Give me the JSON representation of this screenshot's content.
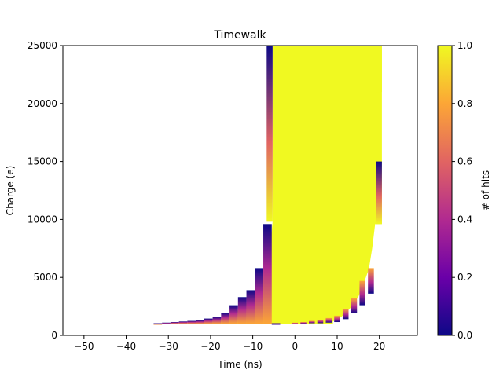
{
  "chart_data": {
    "type": "heatmap",
    "title": "Timewalk",
    "title_color": "#1f5f99",
    "xlabel": "Time (ns)",
    "ylabel": "Charge (e)",
    "xlim": [
      -55,
      29
    ],
    "ylim": [
      0,
      25000
    ],
    "x_ticks": [
      -50,
      -40,
      -30,
      -20,
      -10,
      0,
      10,
      20
    ],
    "y_ticks": [
      0,
      5000,
      10000,
      15000,
      20000,
      25000
    ],
    "colorbar": {
      "label": "# of hits",
      "range": [
        0,
        1
      ],
      "ticks": [
        0.0,
        0.2,
        0.4,
        0.6,
        0.8,
        1.0
      ],
      "colormap": "plasma",
      "stops": [
        "#0d0887",
        "#6a00a8",
        "#b12a90",
        "#e16462",
        "#fca636",
        "#f0f921"
      ]
    },
    "grid": false,
    "series": [
      {
        "x_centers": [
          -32.5,
          -30.5,
          -28.5,
          -26.5,
          -24.5,
          -22.5,
          -20.5,
          -18.5,
          -16.5,
          -14.5,
          -12.5,
          -10.5,
          -8.5,
          -6.5
        ],
        "columns": [
          {
            "x": -32.5,
            "y_low": 950,
            "y_high": 1050
          },
          {
            "x": -30.5,
            "y_low": 1000,
            "y_high": 1100
          },
          {
            "x": -28.5,
            "y_low": 1000,
            "y_high": 1150
          },
          {
            "x": -26.5,
            "y_low": 1000,
            "y_high": 1200
          },
          {
            "x": -24.5,
            "y_low": 1000,
            "y_high": 1250
          },
          {
            "x": -22.5,
            "y_low": 1000,
            "y_high": 1300
          },
          {
            "x": -20.5,
            "y_low": 1000,
            "y_high": 1450
          },
          {
            "x": -18.5,
            "y_low": 1000,
            "y_high": 1600
          },
          {
            "x": -16.5,
            "y_low": 1000,
            "y_high": 1950
          },
          {
            "x": -14.5,
            "y_low": 1000,
            "y_high": 2600
          },
          {
            "x": -12.5,
            "y_low": 1000,
            "y_high": 3300
          },
          {
            "x": -10.5,
            "y_low": 1000,
            "y_high": 3900
          },
          {
            "x": -8.5,
            "y_low": 1000,
            "y_high": 5800
          },
          {
            "x": -6.5,
            "y_low": 1000,
            "y_high": 9600
          }
        ]
      }
    ]
  }
}
